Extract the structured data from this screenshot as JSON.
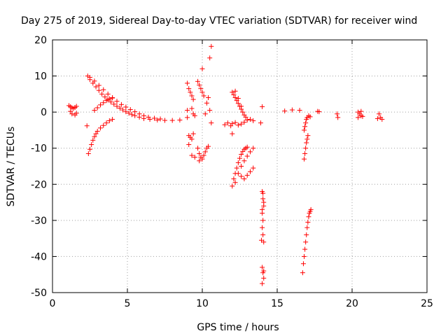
{
  "chart_data": {
    "type": "scatter",
    "title": "Day 275 of 2019, Sidereal Day-to-day VTEC variation (SDTVAR) for receiver wind",
    "xlabel": "GPS time / hours",
    "ylabel": "SDTVAR / TECUs",
    "xlim": [
      0,
      25
    ],
    "ylim": [
      -50,
      20
    ],
    "x_ticks": [
      "0",
      "5",
      "10",
      "15",
      "20",
      "25"
    ],
    "y_ticks": [
      "20",
      "10",
      "0",
      "-10",
      "-20",
      "-30",
      "-40",
      "-50"
    ],
    "x_tick_values": [
      0,
      5,
      10,
      15,
      20,
      25
    ],
    "y_tick_values": [
      20,
      10,
      0,
      -10,
      -20,
      -30,
      -40,
      -50
    ],
    "grid": true,
    "marker": "+",
    "marker_color": "#ff0000",
    "series": [
      {
        "values": [
          [
            1.1,
            1.8
          ],
          [
            1.2,
            1.5
          ],
          [
            1.3,
            1.2
          ],
          [
            1.4,
            1.0
          ],
          [
            1.5,
            1.3
          ],
          [
            1.6,
            1.6
          ],
          [
            1.2,
            0.2
          ],
          [
            1.3,
            -0.5
          ],
          [
            1.5,
            -0.8
          ],
          [
            1.6,
            -0.3
          ],
          [
            2.3,
            -3.8
          ],
          [
            2.35,
            10.0
          ],
          [
            2.5,
            9.0
          ],
          [
            2.7,
            8.0
          ],
          [
            2.9,
            7.0
          ],
          [
            3.1,
            6.0
          ],
          [
            3.3,
            5.0
          ],
          [
            3.5,
            4.2
          ],
          [
            3.7,
            3.4
          ],
          [
            3.9,
            2.8
          ],
          [
            4.1,
            2.2
          ],
          [
            4.3,
            1.6
          ],
          [
            4.5,
            1.1
          ],
          [
            4.7,
            0.6
          ],
          [
            4.9,
            0.1
          ],
          [
            5.1,
            -0.3
          ],
          [
            5.3,
            -0.7
          ],
          [
            5.5,
            -1.0
          ],
          [
            5.8,
            -1.4
          ],
          [
            6.1,
            -1.8
          ],
          [
            6.5,
            -2.0
          ],
          [
            7.0,
            -2.2
          ],
          [
            7.5,
            -2.3
          ],
          [
            8.0,
            -2.3
          ],
          [
            8.5,
            -2.2
          ],
          [
            9.0,
            -1.5
          ],
          [
            2.5,
            9.6
          ],
          [
            2.8,
            8.6
          ],
          [
            3.1,
            7.4
          ],
          [
            3.4,
            6.2
          ],
          [
            3.7,
            5.0
          ],
          [
            4.0,
            3.9
          ],
          [
            4.3,
            3.0
          ],
          [
            4.6,
            2.1
          ],
          [
            4.9,
            1.4
          ],
          [
            5.2,
            0.7
          ],
          [
            5.5,
            0.1
          ],
          [
            5.8,
            -0.5
          ],
          [
            6.1,
            -1.0
          ],
          [
            6.4,
            -1.4
          ],
          [
            6.8,
            -1.7
          ],
          [
            7.2,
            -1.9
          ],
          [
            2.8,
            0.5
          ],
          [
            3.0,
            1.2
          ],
          [
            3.2,
            2.0
          ],
          [
            3.4,
            2.6
          ],
          [
            3.6,
            3.2
          ],
          [
            3.8,
            3.7
          ],
          [
            4.0,
            4.0
          ],
          [
            2.4,
            -11.5
          ],
          [
            2.5,
            -10.3
          ],
          [
            2.6,
            -9.0
          ],
          [
            2.7,
            -7.8
          ],
          [
            2.8,
            -6.8
          ],
          [
            2.9,
            -6.0
          ],
          [
            3.0,
            -5.3
          ],
          [
            3.2,
            -4.4
          ],
          [
            3.4,
            -3.7
          ],
          [
            3.6,
            -3.0
          ],
          [
            3.8,
            -2.4
          ],
          [
            4.0,
            -2.0
          ],
          [
            9.0,
            8.0
          ],
          [
            9.1,
            6.5
          ],
          [
            9.2,
            5.5
          ],
          [
            9.3,
            4.5
          ],
          [
            9.4,
            3.5
          ],
          [
            9.3,
            1.0
          ],
          [
            9.4,
            -0.5
          ],
          [
            9.5,
            -1.0
          ],
          [
            9.0,
            0.5
          ],
          [
            9.1,
            -6.5
          ],
          [
            9.2,
            -7.0
          ],
          [
            9.3,
            -7.5
          ],
          [
            9.4,
            -6.0
          ],
          [
            9.1,
            -9.0
          ],
          [
            9.3,
            -12.0
          ],
          [
            9.5,
            -12.5
          ],
          [
            9.7,
            8.5
          ],
          [
            9.8,
            7.5
          ],
          [
            9.9,
            6.5
          ],
          [
            10.0,
            5.5
          ],
          [
            10.1,
            4.5
          ],
          [
            9.7,
            -10.0
          ],
          [
            9.8,
            -11.5
          ],
          [
            9.9,
            -12.5
          ],
          [
            10.0,
            -13.0
          ],
          [
            10.1,
            -12.0
          ],
          [
            10.2,
            -11.0
          ],
          [
            10.3,
            -10.0
          ],
          [
            10.4,
            -9.5
          ],
          [
            9.8,
            -13.5
          ],
          [
            10.0,
            12.0
          ],
          [
            10.5,
            15.0
          ],
          [
            10.6,
            18.2
          ],
          [
            10.4,
            4.0
          ],
          [
            10.3,
            2.5
          ],
          [
            10.5,
            0.5
          ],
          [
            10.2,
            -0.5
          ],
          [
            10.6,
            -3.0
          ],
          [
            11.5,
            -3.5
          ],
          [
            11.7,
            -3.0
          ],
          [
            11.9,
            -3.8
          ],
          [
            12.0,
            -3.2
          ],
          [
            12.2,
            -2.9
          ],
          [
            12.4,
            -3.6
          ],
          [
            12.6,
            -3.3
          ],
          [
            12.8,
            -2.8
          ],
          [
            13.0,
            -2.2
          ],
          [
            13.2,
            -2.0
          ],
          [
            13.4,
            -2.4
          ],
          [
            12.0,
            5.5
          ],
          [
            12.1,
            4.8
          ],
          [
            12.2,
            4.0
          ],
          [
            12.3,
            3.2
          ],
          [
            12.4,
            2.4
          ],
          [
            12.5,
            1.6
          ],
          [
            12.6,
            0.8
          ],
          [
            12.7,
            0.0
          ],
          [
            12.8,
            -0.8
          ],
          [
            12.9,
            -1.4
          ],
          [
            12.2,
            5.8
          ],
          [
            12.4,
            3.8
          ],
          [
            12.6,
            1.6
          ],
          [
            12.0,
            -6.0
          ],
          [
            12.0,
            -20.5
          ],
          [
            12.1,
            -18.5
          ],
          [
            12.2,
            -17.0
          ],
          [
            12.3,
            -15.5
          ],
          [
            12.4,
            -14.0
          ],
          [
            12.5,
            -12.8
          ],
          [
            12.6,
            -11.7
          ],
          [
            12.7,
            -10.9
          ],
          [
            12.8,
            -10.3
          ],
          [
            12.9,
            -10.0
          ],
          [
            13.0,
            -9.7
          ],
          [
            12.2,
            -19.5
          ],
          [
            12.4,
            -17.0
          ],
          [
            12.6,
            -15.0
          ],
          [
            12.8,
            -13.5
          ],
          [
            13.0,
            -12.2
          ],
          [
            13.2,
            -11.0
          ],
          [
            13.4,
            -10.0
          ],
          [
            12.8,
            -18.5
          ],
          [
            13.0,
            -17.5
          ],
          [
            13.2,
            -16.5
          ],
          [
            13.4,
            -15.5
          ],
          [
            12.6,
            -17.8
          ],
          [
            14.0,
            1.5
          ],
          [
            13.9,
            -3.0
          ],
          [
            14.0,
            -22.0
          ],
          [
            14.05,
            -24.0
          ],
          [
            14.1,
            -26.0
          ],
          [
            14.0,
            -28.0
          ],
          [
            14.05,
            -30.0
          ],
          [
            14.0,
            -32.0
          ],
          [
            14.05,
            -34.0
          ],
          [
            13.95,
            -35.5
          ],
          [
            14.1,
            -36.0
          ],
          [
            14.05,
            -22.5
          ],
          [
            14.1,
            -25.0
          ],
          [
            14.0,
            -27.0
          ],
          [
            14.0,
            -43.0
          ],
          [
            14.05,
            -44.5
          ],
          [
            14.1,
            -46.0
          ],
          [
            14.0,
            -47.5
          ],
          [
            14.1,
            -44.0
          ],
          [
            15.5,
            0.3
          ],
          [
            16.0,
            0.6
          ],
          [
            16.5,
            0.5
          ],
          [
            16.8,
            -13.0
          ],
          [
            16.85,
            -11.5
          ],
          [
            16.9,
            -10.0
          ],
          [
            16.95,
            -8.5
          ],
          [
            17.0,
            -7.5
          ],
          [
            17.05,
            -6.5
          ],
          [
            16.8,
            -5.0
          ],
          [
            16.85,
            -4.0
          ],
          [
            16.9,
            -3.0
          ],
          [
            16.95,
            -2.0
          ],
          [
            17.0,
            -1.5
          ],
          [
            17.1,
            -1.0
          ],
          [
            17.2,
            -1.3
          ],
          [
            16.7,
            -44.5
          ],
          [
            16.75,
            -42.0
          ],
          [
            16.8,
            -40.0
          ],
          [
            16.85,
            -38.0
          ],
          [
            16.9,
            -36.0
          ],
          [
            16.95,
            -34.0
          ],
          [
            17.0,
            -32.0
          ],
          [
            17.05,
            -30.5
          ],
          [
            17.1,
            -29.0
          ],
          [
            17.15,
            -28.0
          ],
          [
            17.2,
            -27.5
          ],
          [
            17.25,
            -27.0
          ],
          [
            17.7,
            0.2
          ],
          [
            17.8,
            0.1
          ],
          [
            19.0,
            -0.5
          ],
          [
            19.05,
            -1.5
          ],
          [
            20.4,
            0.0
          ],
          [
            20.5,
            -0.5
          ],
          [
            20.6,
            -1.0
          ],
          [
            20.7,
            -1.2
          ],
          [
            20.6,
            0.2
          ],
          [
            20.4,
            -1.5
          ],
          [
            21.8,
            -0.5
          ],
          [
            21.9,
            -1.5
          ],
          [
            22.0,
            -2.0
          ],
          [
            21.7,
            -1.8
          ]
        ]
      }
    ]
  }
}
